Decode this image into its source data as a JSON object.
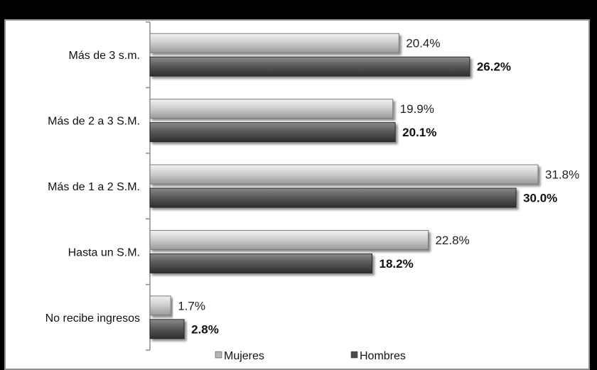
{
  "title": "",
  "chart_data": {
    "type": "bar",
    "orientation": "horizontal",
    "categories": [
      "Más de 3 s.m.",
      "Más de 2 a 3 S.M.",
      "Más de 1 a 2 S.M.",
      "Hasta un S.M.",
      "No recibe ingresos"
    ],
    "series": [
      {
        "name": "Mujeres",
        "values": [
          20.4,
          19.9,
          31.8,
          22.8,
          1.7
        ],
        "labels": [
          "20.4%",
          "19.9%",
          "31.8%",
          "22.8%",
          "1.7%"
        ],
        "color": "#bdbdbd"
      },
      {
        "name": "Hombres",
        "values": [
          26.2,
          20.1,
          30.0,
          18.2,
          2.8
        ],
        "labels": [
          "26.2%",
          "20.1%",
          "30.0%",
          "18.2%",
          "2.8%"
        ],
        "color": "#5e5e5e"
      }
    ],
    "xlim": [
      0,
      33
    ],
    "grid": false,
    "legend": "bottom-center",
    "xlabel": "",
    "ylabel": ""
  }
}
